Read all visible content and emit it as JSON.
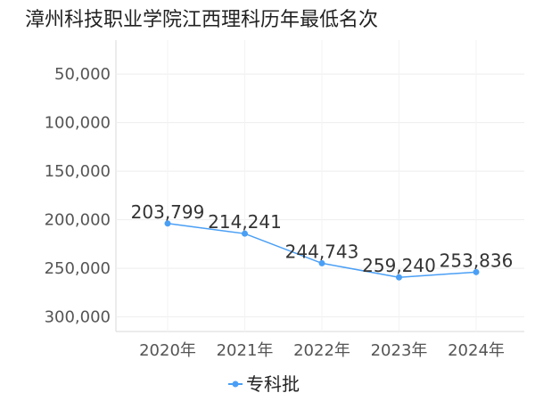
{
  "chart_data": {
    "type": "line",
    "title": "漳州科技职业学院江西理科历年最低名次",
    "xlabel": "",
    "ylabel": "",
    "categories": [
      "2020年",
      "2021年",
      "2022年",
      "2023年",
      "2024年"
    ],
    "series": [
      {
        "name": "专科批",
        "values": [
          203799,
          214241,
          244743,
          259240,
          253836
        ],
        "labels": [
          "203,799",
          "214,241",
          "244,743",
          "259,240",
          "253,836"
        ],
        "color": "#4a9ff5"
      }
    ],
    "y_ticks": [
      {
        "value": 50000,
        "label": "50,000"
      },
      {
        "value": 100000,
        "label": "100,000"
      },
      {
        "value": 150000,
        "label": "150,000"
      },
      {
        "value": 200000,
        "label": "200,000"
      },
      {
        "value": 250000,
        "label": "250,000"
      },
      {
        "value": 300000,
        "label": "300,000"
      }
    ],
    "ylim": [
      15000,
      315000
    ],
    "y_inverted": true,
    "grid": true,
    "legend_position": "bottom-center"
  }
}
